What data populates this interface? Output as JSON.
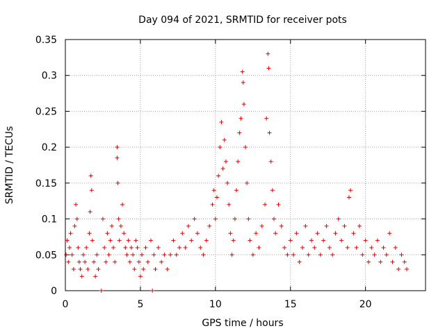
{
  "chart_data": {
    "type": "scatter",
    "title": "Day 094 of 2021, SRMTID for receiver pots",
    "xlabel": "GPS time / hours",
    "ylabel": "SRMTID / TECUs",
    "xlim": [
      0,
      24
    ],
    "ylim": [
      0,
      0.35
    ],
    "xticks": [
      0,
      5,
      10,
      15,
      20
    ],
    "xtick_labels": [
      "0",
      "5",
      "10",
      "15",
      "20"
    ],
    "yticks": [
      0,
      0.05,
      0.1,
      0.15,
      0.2,
      0.25,
      0.3,
      0.35
    ],
    "ytick_labels": [
      "0",
      "0.05",
      "0.1",
      "0.15",
      "0.2",
      "0.25",
      "0.3",
      "0.35"
    ],
    "grid": true,
    "marker": "+",
    "marker_color": "#e00000",
    "series": [
      {
        "name": "SRMTID",
        "points": [
          [
            0.05,
            0.05
          ],
          [
            0.12,
            0.07
          ],
          [
            0.2,
            0.04
          ],
          [
            0.28,
            0.06
          ],
          [
            0.35,
            0.08
          ],
          [
            0.45,
            0.05
          ],
          [
            0.55,
            0.03
          ],
          [
            0.62,
            0.09
          ],
          [
            0.7,
            0.12
          ],
          [
            0.78,
            0.1
          ],
          [
            0.85,
            0.06
          ],
          [
            0.92,
            0.04
          ],
          [
            1.0,
            0.03
          ],
          [
            1.1,
            0.02
          ],
          [
            1.2,
            0.05
          ],
          [
            1.3,
            0.04
          ],
          [
            1.4,
            0.06
          ],
          [
            1.5,
            0.03
          ],
          [
            1.6,
            0.08
          ],
          [
            1.65,
            0.11
          ],
          [
            1.7,
            0.16
          ],
          [
            1.75,
            0.14
          ],
          [
            1.8,
            0.07
          ],
          [
            1.9,
            0.04
          ],
          [
            2.0,
            0.02
          ],
          [
            2.1,
            0.05
          ],
          [
            2.2,
            0.03
          ],
          [
            2.4,
            0.0
          ],
          [
            2.5,
            0.1
          ],
          [
            2.6,
            0.06
          ],
          [
            2.7,
            0.04
          ],
          [
            2.8,
            0.08
          ],
          [
            2.9,
            0.05
          ],
          [
            3.0,
            0.07
          ],
          [
            3.1,
            0.09
          ],
          [
            3.2,
            0.06
          ],
          [
            3.3,
            0.04
          ],
          [
            3.45,
            0.2
          ],
          [
            3.45,
            0.185
          ],
          [
            3.5,
            0.15
          ],
          [
            3.55,
            0.1
          ],
          [
            3.6,
            0.07
          ],
          [
            3.7,
            0.09
          ],
          [
            3.8,
            0.12
          ],
          [
            3.9,
            0.08
          ],
          [
            4.0,
            0.06
          ],
          [
            4.1,
            0.05
          ],
          [
            4.2,
            0.07
          ],
          [
            4.3,
            0.04
          ],
          [
            4.4,
            0.06
          ],
          [
            4.5,
            0.05
          ],
          [
            4.6,
            0.03
          ],
          [
            4.7,
            0.07
          ],
          [
            4.8,
            0.06
          ],
          [
            4.9,
            0.04
          ],
          [
            5.0,
            0.02
          ],
          [
            5.1,
            0.05
          ],
          [
            5.2,
            0.03
          ],
          [
            5.35,
            0.06
          ],
          [
            5.5,
            0.04
          ],
          [
            5.7,
            0.07
          ],
          [
            5.8,
            0.0
          ],
          [
            5.9,
            0.05
          ],
          [
            6.0,
            0.03
          ],
          [
            6.2,
            0.06
          ],
          [
            6.4,
            0.04
          ],
          [
            6.6,
            0.05
          ],
          [
            6.8,
            0.03
          ],
          [
            7.0,
            0.05
          ],
          [
            7.2,
            0.07
          ],
          [
            7.4,
            0.05
          ],
          [
            7.6,
            0.06
          ],
          [
            7.8,
            0.08
          ],
          [
            8.0,
            0.06
          ],
          [
            8.2,
            0.09
          ],
          [
            8.4,
            0.07
          ],
          [
            8.6,
            0.1
          ],
          [
            8.8,
            0.08
          ],
          [
            9.0,
            0.06
          ],
          [
            9.2,
            0.05
          ],
          [
            9.4,
            0.07
          ],
          [
            9.6,
            0.09
          ],
          [
            9.8,
            0.12
          ],
          [
            9.9,
            0.14
          ],
          [
            10.0,
            0.1
          ],
          [
            10.1,
            0.13
          ],
          [
            10.2,
            0.16
          ],
          [
            10.3,
            0.2
          ],
          [
            10.4,
            0.235
          ],
          [
            10.5,
            0.17
          ],
          [
            10.6,
            0.21
          ],
          [
            10.7,
            0.18
          ],
          [
            10.8,
            0.15
          ],
          [
            10.9,
            0.12
          ],
          [
            11.0,
            0.08
          ],
          [
            11.1,
            0.05
          ],
          [
            11.2,
            0.07
          ],
          [
            11.3,
            0.1
          ],
          [
            11.4,
            0.14
          ],
          [
            11.5,
            0.18
          ],
          [
            11.6,
            0.22
          ],
          [
            11.7,
            0.24
          ],
          [
            11.8,
            0.305
          ],
          [
            11.85,
            0.29
          ],
          [
            11.9,
            0.26
          ],
          [
            12.0,
            0.2
          ],
          [
            12.1,
            0.15
          ],
          [
            12.2,
            0.1
          ],
          [
            12.3,
            0.07
          ],
          [
            12.5,
            0.05
          ],
          [
            12.7,
            0.08
          ],
          [
            12.9,
            0.06
          ],
          [
            13.1,
            0.09
          ],
          [
            13.3,
            0.12
          ],
          [
            13.4,
            0.24
          ],
          [
            13.5,
            0.33
          ],
          [
            13.55,
            0.31
          ],
          [
            13.6,
            0.22
          ],
          [
            13.7,
            0.18
          ],
          [
            13.8,
            0.14
          ],
          [
            13.9,
            0.1
          ],
          [
            14.0,
            0.08
          ],
          [
            14.2,
            0.12
          ],
          [
            14.4,
            0.09
          ],
          [
            14.6,
            0.06
          ],
          [
            14.8,
            0.05
          ],
          [
            15.0,
            0.07
          ],
          [
            15.2,
            0.05
          ],
          [
            15.4,
            0.08
          ],
          [
            15.6,
            0.04
          ],
          [
            15.8,
            0.06
          ],
          [
            16.0,
            0.09
          ],
          [
            16.2,
            0.05
          ],
          [
            16.4,
            0.07
          ],
          [
            16.6,
            0.06
          ],
          [
            16.8,
            0.08
          ],
          [
            17.0,
            0.05
          ],
          [
            17.2,
            0.07
          ],
          [
            17.4,
            0.09
          ],
          [
            17.6,
            0.06
          ],
          [
            17.8,
            0.05
          ],
          [
            18.0,
            0.08
          ],
          [
            18.2,
            0.1
          ],
          [
            18.4,
            0.07
          ],
          [
            18.6,
            0.09
          ],
          [
            18.8,
            0.06
          ],
          [
            18.9,
            0.13
          ],
          [
            19.0,
            0.14
          ],
          [
            19.2,
            0.08
          ],
          [
            19.4,
            0.06
          ],
          [
            19.6,
            0.09
          ],
          [
            19.8,
            0.05
          ],
          [
            20.0,
            0.07
          ],
          [
            20.2,
            0.04
          ],
          [
            20.4,
            0.06
          ],
          [
            20.6,
            0.05
          ],
          [
            20.8,
            0.07
          ],
          [
            21.0,
            0.04
          ],
          [
            21.2,
            0.06
          ],
          [
            21.4,
            0.05
          ],
          [
            21.6,
            0.08
          ],
          [
            21.8,
            0.04
          ],
          [
            22.0,
            0.06
          ],
          [
            22.2,
            0.03
          ],
          [
            22.4,
            0.05
          ],
          [
            22.6,
            0.04
          ],
          [
            22.75,
            0.03
          ]
        ]
      }
    ]
  }
}
